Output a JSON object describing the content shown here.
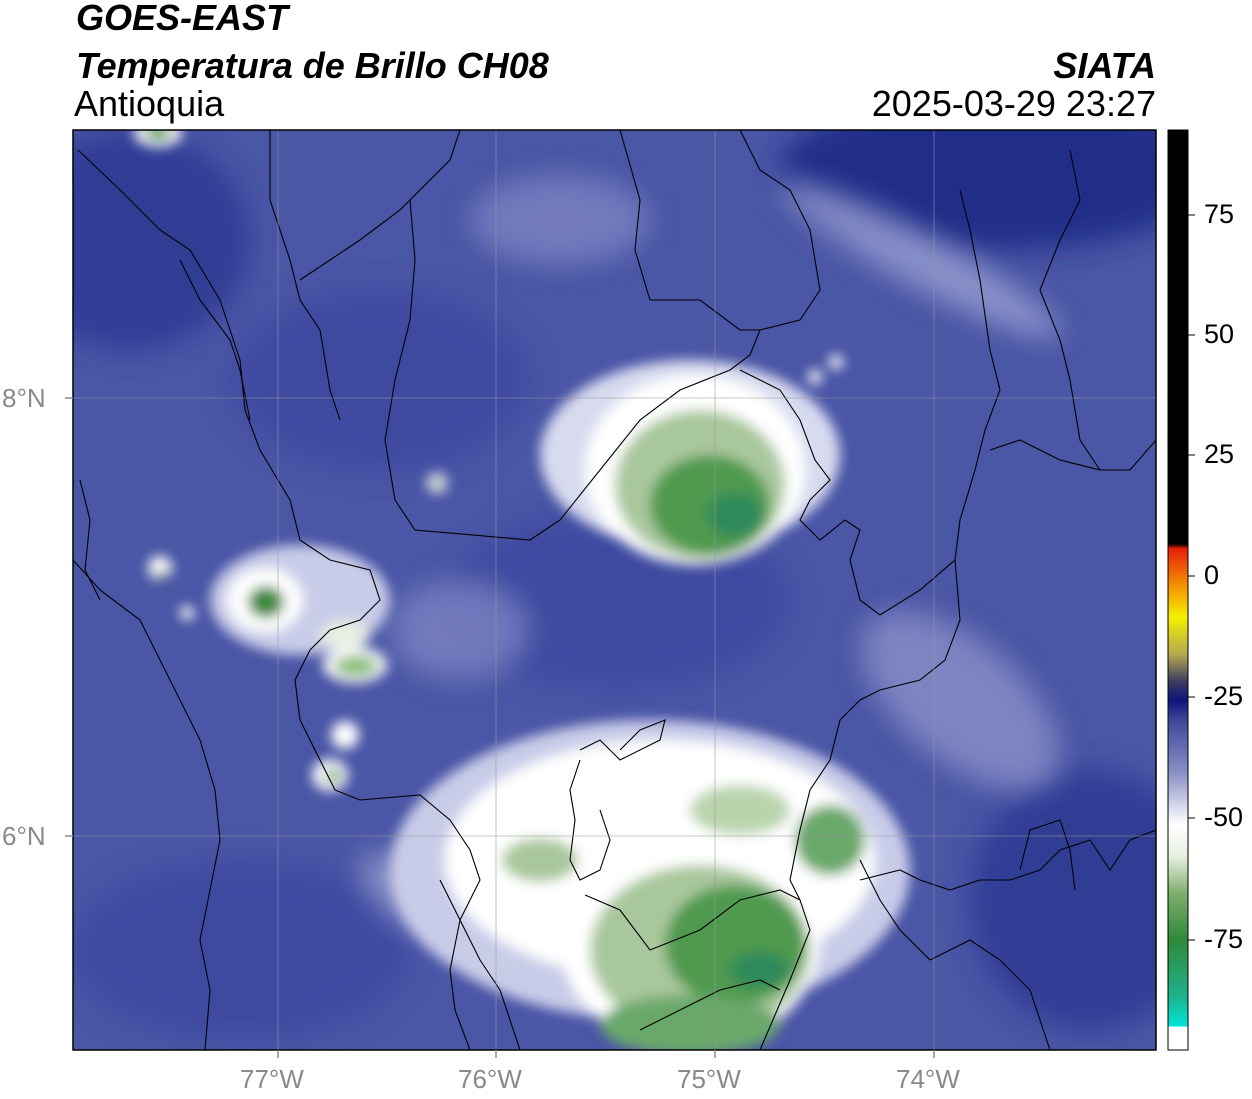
{
  "header": {
    "satellite": "GOES-EAST",
    "product": "Temperatura de Brillo CH08",
    "region": "Antioquia",
    "agency": "SIATA",
    "datetime": "2025-03-29 23:27"
  },
  "map": {
    "lon_ticks": [
      "77°W",
      "76°W",
      "75°W",
      "74°W"
    ],
    "lat_ticks": [
      "8°N",
      "6°N"
    ],
    "gridlines": true,
    "background_color": "#4a56a6"
  },
  "colorbar": {
    "ticks": [
      "75",
      "50",
      "25",
      "0",
      "-25",
      "-50",
      "-75"
    ],
    "colors": {
      "very_cold": "#00e5d6",
      "cold_green": "#3c8a3c",
      "white_band": "#ffffff",
      "blue": "#3a4598",
      "navy": "#0e147a",
      "red": "#e61e0a",
      "orange": "#f5a000",
      "yellow": "#f5f000",
      "warm_black": "#000000"
    }
  }
}
